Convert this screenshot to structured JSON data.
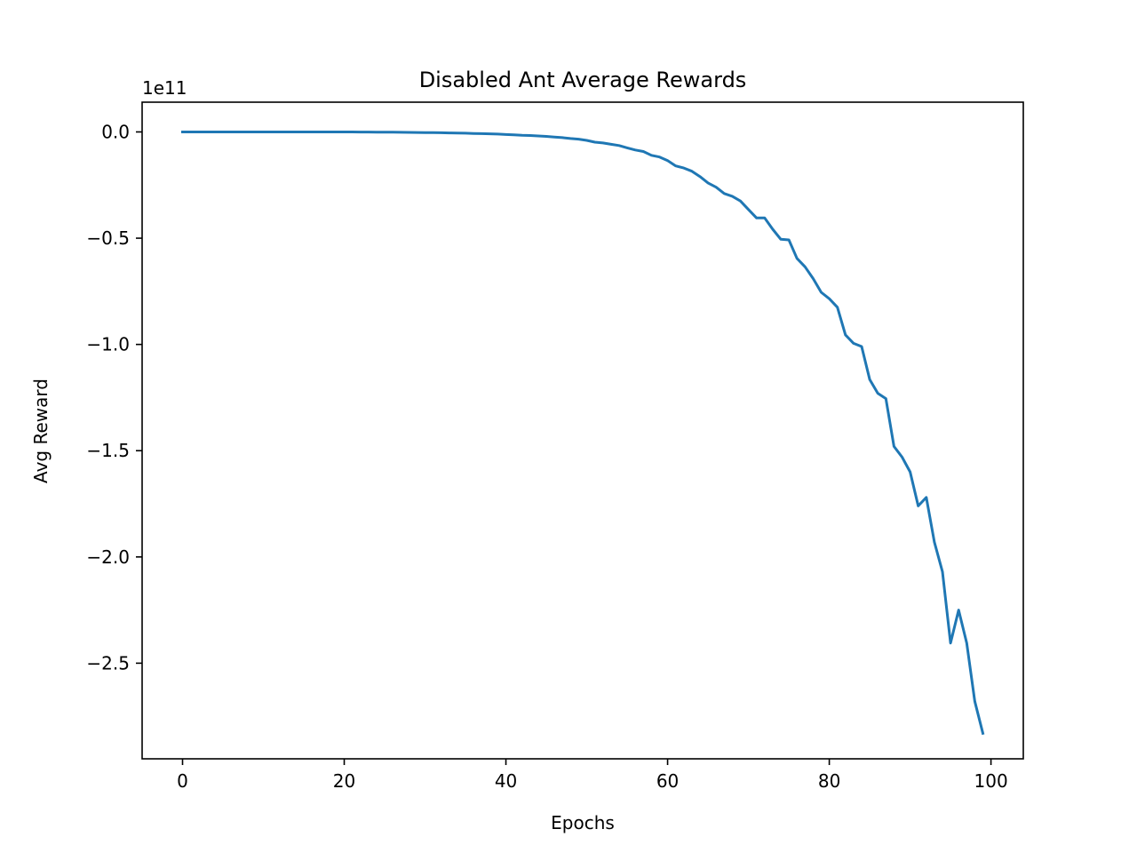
{
  "chart_data": {
    "type": "line",
    "title": "Disabled Ant Average Rewards",
    "xlabel": "Epochs",
    "ylabel": "Avg Reward",
    "y_offset_text": "1e11",
    "y_scale": 100000000000.0,
    "xlim": [
      -5,
      104
    ],
    "ylim": [
      -2.95,
      0.14
    ],
    "xticks": [
      0,
      20,
      40,
      60,
      80,
      100
    ],
    "xtick_labels": [
      "0",
      "20",
      "40",
      "60",
      "80",
      "100"
    ],
    "yticks": [
      0.0,
      -0.5,
      -1.0,
      -1.5,
      -2.0,
      -2.5
    ],
    "ytick_labels": [
      "0.0",
      "−0.5",
      "−1.0",
      "−1.5",
      "−2.0",
      "−2.5"
    ],
    "grid": false,
    "color": "#1f77b4",
    "series": [
      {
        "x": [
          0,
          1,
          2,
          3,
          4,
          5,
          6,
          7,
          8,
          9,
          10,
          11,
          12,
          13,
          14,
          15,
          16,
          17,
          18,
          19,
          20,
          21,
          22,
          23,
          24,
          25,
          26,
          27,
          28,
          29,
          30,
          31,
          32,
          33,
          34,
          35,
          36,
          37,
          38,
          39,
          40,
          41,
          42,
          43,
          44,
          45,
          46,
          47,
          48,
          49,
          50,
          51,
          52,
          53,
          54,
          55,
          56,
          57,
          58,
          59,
          60,
          61,
          62,
          63,
          64,
          65,
          66,
          67,
          68,
          69,
          70,
          71,
          72,
          73,
          74,
          75,
          76,
          77,
          78,
          79,
          80,
          81,
          82,
          83,
          84,
          85,
          86,
          87,
          88,
          89,
          90,
          91,
          92,
          93,
          94,
          95,
          96,
          97,
          98,
          99
        ],
        "values": [
          0.0,
          0.0,
          0.0,
          0.0,
          0.0,
          0.0,
          0.0,
          0.0,
          0.0,
          0.0,
          0.0,
          0.0,
          0.0,
          0.0,
          0.0,
          0.0,
          0.0,
          0.0,
          0.0,
          0.0,
          0.0,
          -0.0002,
          -0.0004,
          -0.0006,
          -0.0008,
          -0.001,
          -0.0013,
          -0.0016,
          -0.002,
          -0.0025,
          -0.003,
          -0.0035,
          -0.004,
          -0.0045,
          -0.005,
          -0.006,
          -0.007,
          -0.008,
          -0.009,
          -0.01,
          -0.012,
          -0.014,
          -0.016,
          -0.017,
          -0.019,
          -0.021,
          -0.024,
          -0.027,
          -0.031,
          -0.034,
          -0.04,
          -0.048,
          -0.052,
          -0.058,
          -0.064,
          -0.075,
          -0.085,
          -0.092,
          -0.11,
          -0.118,
          -0.135,
          -0.16,
          -0.17,
          -0.185,
          -0.21,
          -0.24,
          -0.26,
          -0.29,
          -0.303,
          -0.325,
          -0.365,
          -0.405,
          -0.405,
          -0.458,
          -0.505,
          -0.508,
          -0.595,
          -0.635,
          -0.69,
          -0.755,
          -0.785,
          -0.825,
          -0.955,
          -0.995,
          -1.01,
          -1.165,
          -1.23,
          -1.255,
          -1.48,
          -1.53,
          -1.6,
          -1.76,
          -1.72,
          -1.93,
          -2.07,
          -2.405,
          -2.25,
          -2.405,
          -2.68,
          -2.83
        ]
      }
    ]
  }
}
